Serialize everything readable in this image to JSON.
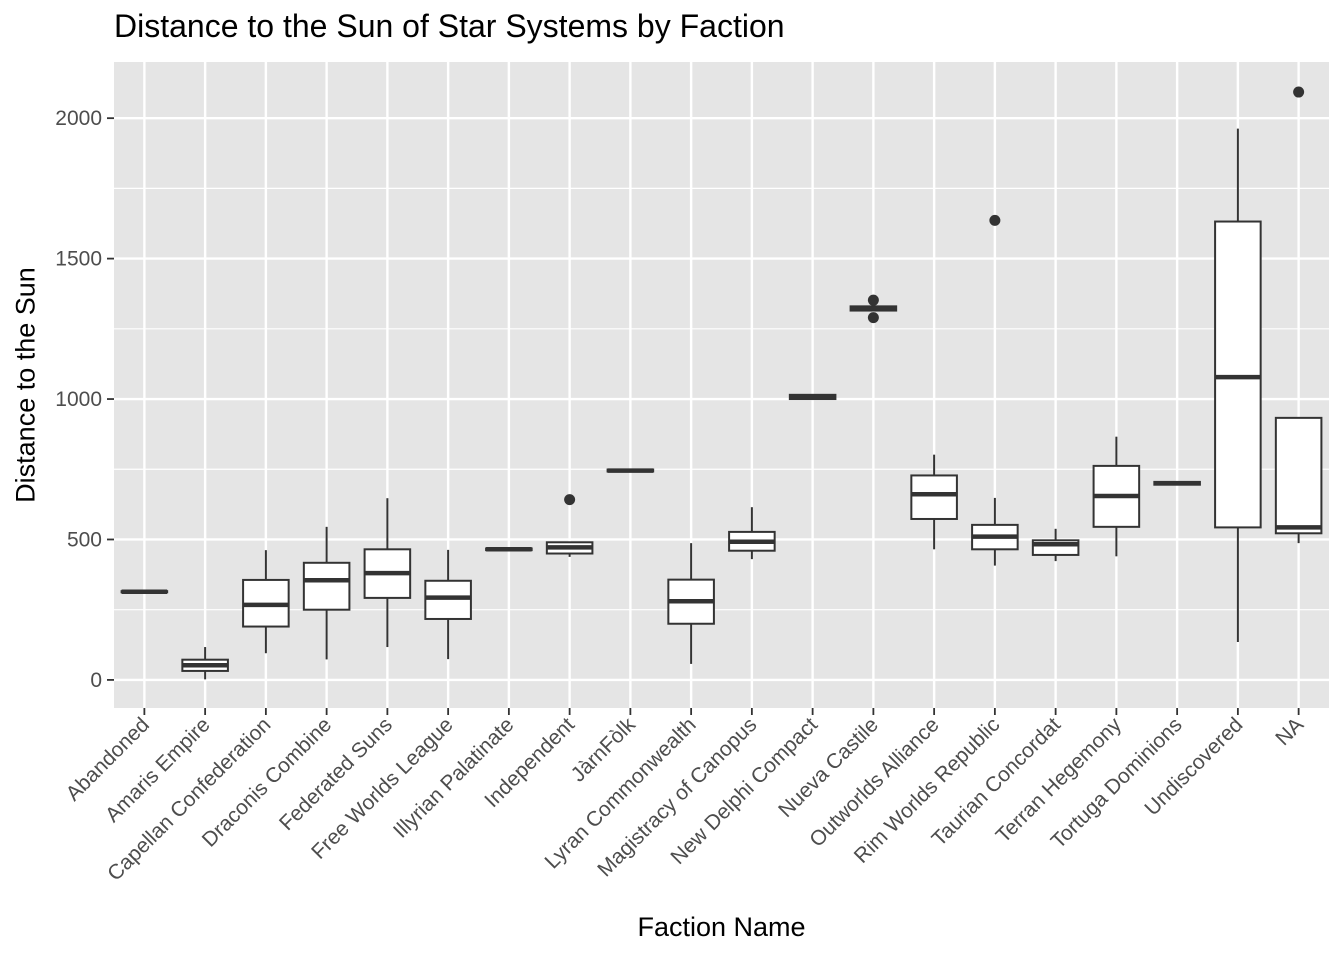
{
  "chart_data": {
    "type": "boxplot",
    "title": "Distance to the Sun of Star Systems by Faction",
    "xlabel": "Faction Name",
    "ylabel": "Distance to the Sun",
    "ylim": [
      -100,
      2200
    ],
    "yticks": [
      0,
      500,
      1000,
      1500,
      2000
    ],
    "grid": true,
    "legend": "none",
    "colors": {
      "panel": "#e5e5e5",
      "grid": "#ffffff",
      "box_fill": "#ffffff",
      "box_line": "#333333",
      "tick_text": "#4d4d4d"
    },
    "categories": [
      "Abandoned",
      "Amaris Empire",
      "Capellan Confederation",
      "Draconis Combine",
      "Federated Suns",
      "Free Worlds League",
      "Illyrian Palatinate",
      "Independent",
      "JàrnFòlk",
      "Lyran Commonwealth",
      "Magistracy of Canopus",
      "New Delphi Compact",
      "Nueva Castile",
      "Outworlds Alliance",
      "Rim Worlds Republic",
      "Taurian Concordat",
      "Terran Hegemony",
      "Tortuga Dominions",
      "Undiscovered",
      "NA"
    ],
    "boxes": [
      {
        "min": 312,
        "q1": 312,
        "median": 314,
        "q3": 316,
        "max": 316,
        "outliers": []
      },
      {
        "min": 2,
        "q1": 32,
        "median": 52,
        "q3": 72,
        "max": 117,
        "outliers": []
      },
      {
        "min": 95,
        "q1": 190,
        "median": 267,
        "q3": 356,
        "max": 462,
        "outliers": []
      },
      {
        "min": 73,
        "q1": 250,
        "median": 355,
        "q3": 417,
        "max": 545,
        "outliers": []
      },
      {
        "min": 117,
        "q1": 292,
        "median": 380,
        "q3": 465,
        "max": 647,
        "outliers": []
      },
      {
        "min": 74,
        "q1": 217,
        "median": 293,
        "q3": 353,
        "max": 463,
        "outliers": []
      },
      {
        "min": 462,
        "q1": 462,
        "median": 465,
        "q3": 468,
        "max": 468,
        "outliers": []
      },
      {
        "min": 438,
        "q1": 450,
        "median": 472,
        "q3": 490,
        "max": 490,
        "outliers": [
          642
        ]
      },
      {
        "min": 742,
        "q1": 742,
        "median": 745,
        "q3": 749,
        "max": 749,
        "outliers": []
      },
      {
        "min": 57,
        "q1": 200,
        "median": 280,
        "q3": 357,
        "max": 487,
        "outliers": []
      },
      {
        "min": 430,
        "q1": 460,
        "median": 492,
        "q3": 527,
        "max": 615,
        "outliers": []
      },
      {
        "min": 997,
        "q1": 1000,
        "median": 1008,
        "q3": 1015,
        "max": 1015,
        "outliers": []
      },
      {
        "min": 1312,
        "q1": 1315,
        "median": 1322,
        "q3": 1330,
        "max": 1333,
        "outliers": [
          1290,
          1352
        ]
      },
      {
        "min": 465,
        "q1": 573,
        "median": 661,
        "q3": 728,
        "max": 802,
        "outliers": []
      },
      {
        "min": 407,
        "q1": 465,
        "median": 510,
        "q3": 552,
        "max": 648,
        "outliers": [
          1636
        ]
      },
      {
        "min": 423,
        "q1": 445,
        "median": 483,
        "q3": 497,
        "max": 538,
        "outliers": []
      },
      {
        "min": 440,
        "q1": 545,
        "median": 655,
        "q3": 762,
        "max": 866,
        "outliers": []
      },
      {
        "min": 695,
        "q1": 695,
        "median": 700,
        "q3": 705,
        "max": 705,
        "outliers": []
      },
      {
        "min": 135,
        "q1": 543,
        "median": 1078,
        "q3": 1632,
        "max": 1963,
        "outliers": []
      },
      {
        "min": 487,
        "q1": 522,
        "median": 543,
        "q3": 933,
        "max": 933,
        "outliers": [
          2093
        ]
      }
    ]
  }
}
